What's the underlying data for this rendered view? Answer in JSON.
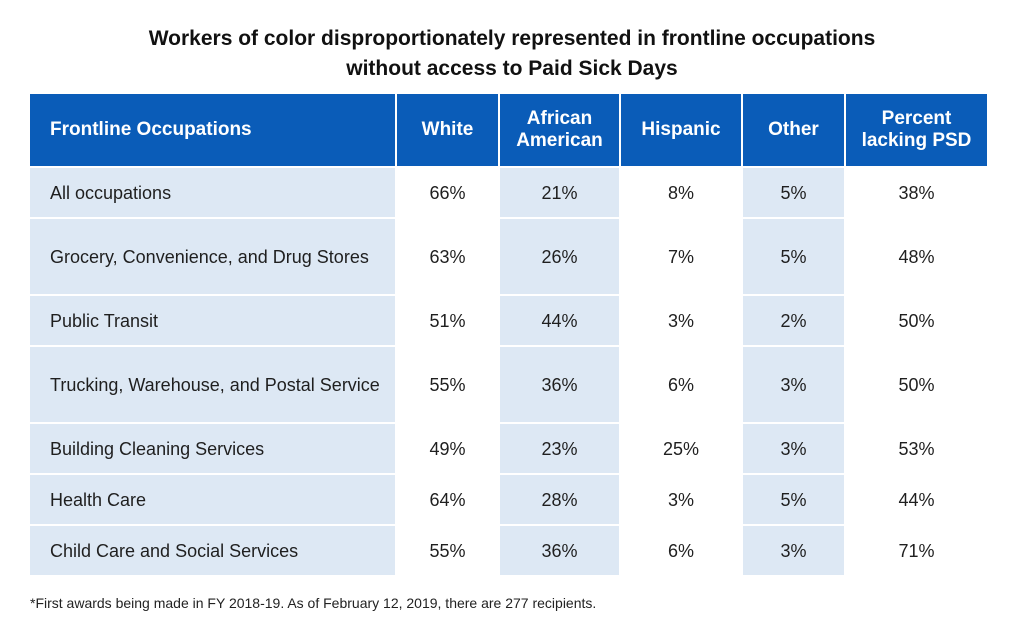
{
  "chart_data": {
    "type": "table",
    "title_lines": [
      "Workers of color disproportionately represented in frontline occupations",
      "without access to Paid Sick Days"
    ],
    "columns": [
      "Frontline Occupations",
      "White",
      "African American",
      "Hispanic",
      "Other",
      "Percent lacking PSD"
    ],
    "rows": [
      {
        "occupation": "All occupations",
        "values": [
          "66%",
          "21%",
          "8%",
          "5%",
          "38%"
        ]
      },
      {
        "occupation": "Grocery, Convenience, and Drug Stores",
        "values": [
          "63%",
          "26%",
          "7%",
          "5%",
          "48%"
        ]
      },
      {
        "occupation": "Public Transit",
        "values": [
          "51%",
          "44%",
          "3%",
          "2%",
          "50%"
        ]
      },
      {
        "occupation": "Trucking, Warehouse, and Postal Service",
        "values": [
          "55%",
          "36%",
          "6%",
          "3%",
          "50%"
        ]
      },
      {
        "occupation": "Building Cleaning Services",
        "values": [
          "49%",
          "23%",
          "25%",
          "3%",
          "53%"
        ]
      },
      {
        "occupation": "Health Care",
        "values": [
          "64%",
          "28%",
          "3%",
          "5%",
          "44%"
        ]
      },
      {
        "occupation": "Child Care and Social Services",
        "values": [
          "55%",
          "36%",
          "6%",
          "3%",
          "71%"
        ]
      }
    ],
    "footnote": "*First awards being made in FY 2018-19. As of February 12, 2019, there are 277 recipients."
  },
  "colors": {
    "header_bg": "#0a5cb8",
    "shaded_cell": "#dde8f4",
    "header_text": "#ffffff"
  }
}
